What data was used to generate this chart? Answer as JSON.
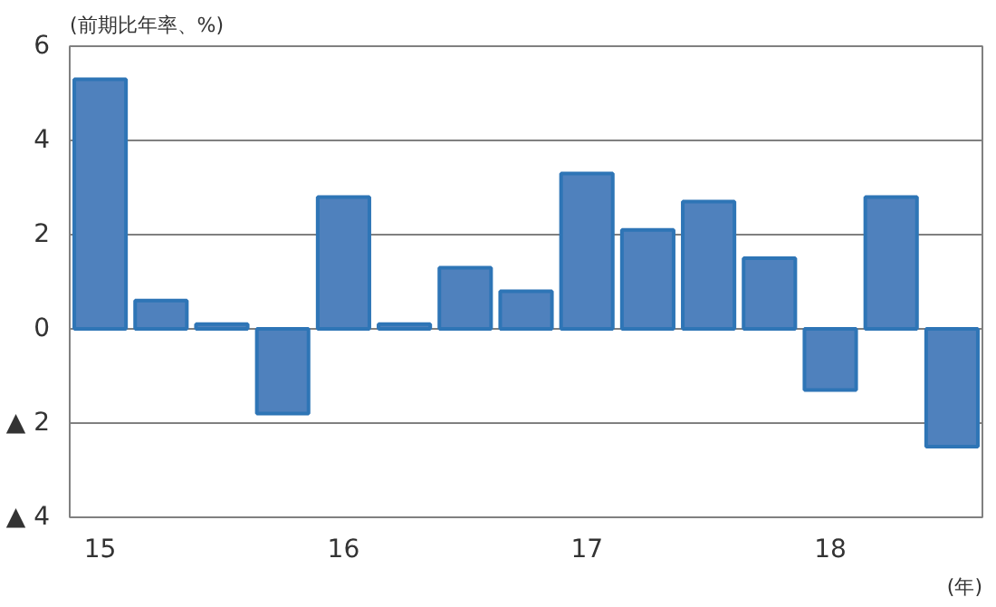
{
  "chart_data": {
    "type": "bar",
    "ylabel": "(前期比年率、%)",
    "xlabel": "(年)",
    "categories": [
      "15",
      null,
      null,
      null,
      "16",
      null,
      null,
      null,
      "17",
      null,
      null,
      null,
      "18",
      null,
      null
    ],
    "values": [
      5.3,
      0.6,
      0.1,
      -1.8,
      2.8,
      0.1,
      1.3,
      0.8,
      3.3,
      2.1,
      2.7,
      1.5,
      -1.3,
      2.8,
      -2.5
    ],
    "color": "#4f81bd",
    "ylim": [
      -4,
      6
    ],
    "yticks": [
      {
        "value": -4,
        "label": "▲ 4"
      },
      {
        "value": -2,
        "label": "▲ 2"
      },
      0,
      2,
      4,
      6
    ],
    "grid": "y"
  }
}
